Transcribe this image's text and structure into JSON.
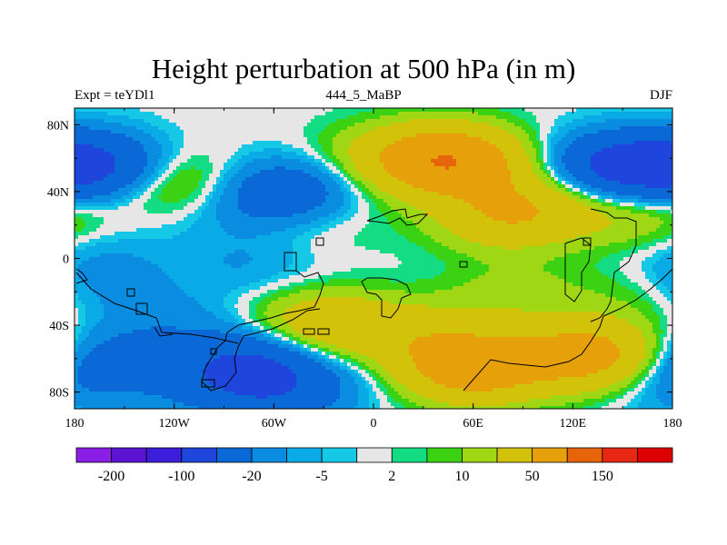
{
  "chart_data": {
    "type": "heatmap",
    "title": "Height perturbation at 500 hPa (in m)",
    "subtitle_left": "Expt = teYDl1",
    "subtitle_center": "444_5_MaBP",
    "subtitle_right": "DJF",
    "x_ticks": [
      "180",
      "120W",
      "60W",
      "0",
      "60E",
      "120E",
      "180"
    ],
    "x_tick_values": [
      -180,
      -120,
      -60,
      0,
      60,
      120,
      180
    ],
    "y_ticks": [
      "80N",
      "40N",
      "0",
      "40S",
      "80S"
    ],
    "y_tick_values": [
      80,
      40,
      0,
      -40,
      -80
    ],
    "xlim": [
      -180,
      180
    ],
    "ylim": [
      -90,
      90
    ],
    "colorbar": {
      "levels": [
        -200,
        -150,
        -100,
        -50,
        -20,
        -10,
        -5,
        -2,
        2,
        5,
        10,
        20,
        50,
        100,
        150,
        200
      ],
      "labels": [
        {
          "text": "-200",
          "level_index": 0
        },
        {
          "text": "-100",
          "level_index": 2
        },
        {
          "text": "-20",
          "level_index": 4
        },
        {
          "text": "-5",
          "level_index": 6
        },
        {
          "text": "2",
          "level_index": 8
        },
        {
          "text": "10",
          "level_index": 10
        },
        {
          "text": "50",
          "level_index": 12
        },
        {
          "text": "150",
          "level_index": 14
        }
      ],
      "colors": [
        "#8b1ee6",
        "#5a14d2",
        "#3c1edc",
        "#1e46dc",
        "#0a69d7",
        "#0a8ce1",
        "#0aaae6",
        "#14c8e6",
        "#e6e6e6",
        "#14dc82",
        "#3cd214",
        "#a0d714",
        "#d2c30a",
        "#e6a00a",
        "#e6640a",
        "#e62814",
        "#dc0000"
      ]
    },
    "field_centers": [
      {
        "lon": -168,
        "lat": 55,
        "value": -55
      },
      {
        "lon": 148,
        "lat": 55,
        "value": -60
      },
      {
        "lon": 45,
        "lat": 58,
        "value": 95
      },
      {
        "lon": -120,
        "lat": 45,
        "value": 25
      },
      {
        "lon": -55,
        "lat": 40,
        "value": -40
      },
      {
        "lon": 5,
        "lat": 62,
        "value": 15
      },
      {
        "lon": 100,
        "lat": 35,
        "value": 18
      },
      {
        "lon": 158,
        "lat": 25,
        "value": 20
      },
      {
        "lon": -75,
        "lat": -3,
        "value": -10
      },
      {
        "lon": -165,
        "lat": -15,
        "value": -14
      },
      {
        "lon": -100,
        "lat": 28,
        "value": -6
      },
      {
        "lon": -125,
        "lat": -38,
        "value": -12
      },
      {
        "lon": 85,
        "lat": -22,
        "value": 14
      },
      {
        "lon": 162,
        "lat": -22,
        "value": 10
      },
      {
        "lon": -30,
        "lat": -40,
        "value": 40
      },
      {
        "lon": 25,
        "lat": -45,
        "value": 25
      },
      {
        "lon": 60,
        "lat": -65,
        "value": 80
      },
      {
        "lon": 130,
        "lat": -58,
        "value": 70
      },
      {
        "lon": -72,
        "lat": -62,
        "value": -45
      },
      {
        "lon": -165,
        "lat": -62,
        "value": -28
      },
      {
        "lon": -100,
        "lat": -75,
        "value": -18
      },
      {
        "lon": -55,
        "lat": -80,
        "value": -30
      },
      {
        "lon": -5,
        "lat": -70,
        "value": -4
      },
      {
        "lon": -170,
        "lat": 5,
        "value": -7
      },
      {
        "lon": 175,
        "lat": -78,
        "value": -10
      },
      {
        "lon": 80,
        "lat": 25,
        "value": 40
      },
      {
        "lon": -30,
        "lat": 20,
        "value": 6
      }
    ]
  }
}
